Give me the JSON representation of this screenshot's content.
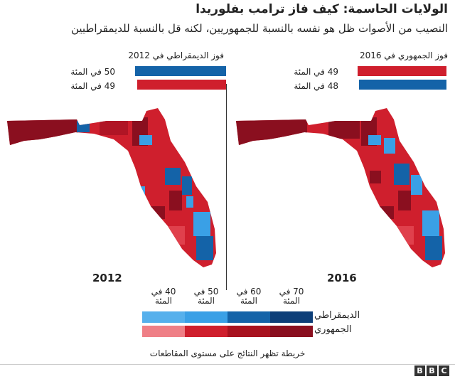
{
  "title": "الولايات الحاسمة: كيف فاز ترامب بفلوريدا",
  "subtitle": "النصيب من الأصوات ظل هو نفسه بالنسبة للجمهوريين، لكنه قل بالنسبة للديمقراطيين",
  "colors": {
    "dem_dark": "#0d3e78",
    "dem_mid": "#1463a8",
    "dem_light": "#3aa0e6",
    "rep_dark": "#8a0f1f",
    "rep_mid": "#cf1f2d",
    "rep_light": "#ef7f86"
  },
  "chart_data": [
    {
      "type": "bar",
      "title": "فوز الديمقراطي في 2012",
      "year": "2012",
      "series": [
        {
          "name": "الديمقراطي",
          "value": 50,
          "label": "50 في المئة",
          "color": "#1463a8"
        },
        {
          "name": "الجمهوري",
          "value": 49,
          "label": "49 في المئة",
          "color": "#cf1f2d"
        }
      ],
      "map_caption": "2012"
    },
    {
      "type": "bar",
      "title": "فوز الجمهوري في 2016",
      "year": "2016",
      "series": [
        {
          "name": "الجمهوري",
          "value": 49,
          "label": "49 في المئة",
          "color": "#cf1f2d"
        },
        {
          "name": "الديمقراطي",
          "value": 48,
          "label": "48 في المئة",
          "color": "#1463a8"
        }
      ],
      "map_caption": "2016"
    }
  ],
  "legend": {
    "ticks": [
      "40 في المئة",
      "50 في المئة",
      "60 في المئة",
      "70 في المئة"
    ],
    "dem_label": "الديمقراطي",
    "rep_label": "الجمهوري"
  },
  "note": "خريطة تظهر النتائج على مستوى المقاطعات",
  "logo": [
    "B",
    "B",
    "C"
  ]
}
